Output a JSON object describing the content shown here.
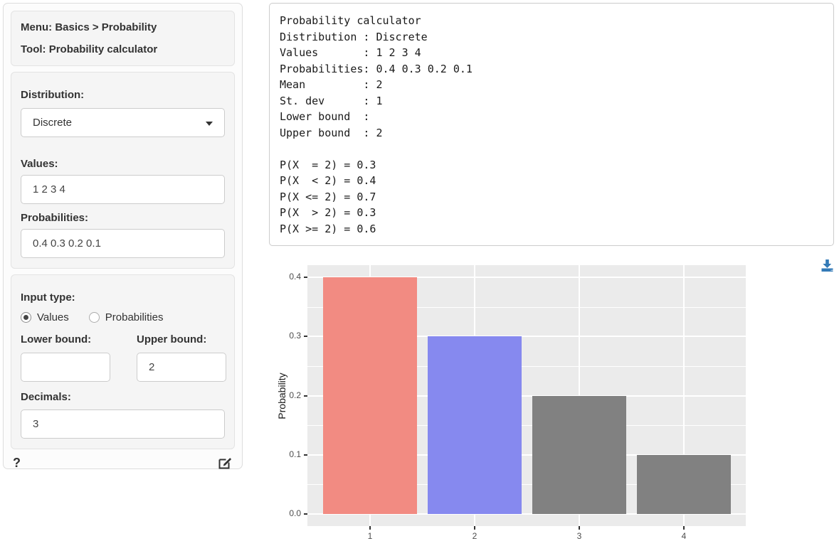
{
  "sidebar": {
    "menu_line": "Menu: Basics > Probability",
    "tool_line": "Tool: Probability calculator",
    "distribution": {
      "label": "Distribution:",
      "value": "Discrete"
    },
    "values": {
      "label": "Values:",
      "value": "1 2 3 4"
    },
    "probabilities": {
      "label": "Probabilities:",
      "value": "0.4 0.3 0.2 0.1"
    },
    "input_type": {
      "label": "Input type:",
      "options": [
        "Values",
        "Probabilities"
      ],
      "selected": "Values"
    },
    "lower_bound": {
      "label": "Lower bound:",
      "value": ""
    },
    "upper_bound": {
      "label": "Upper bound:",
      "value": "2"
    },
    "decimals": {
      "label": "Decimals:",
      "value": "3"
    },
    "help_label": "?"
  },
  "output": {
    "text": "Probability calculator\nDistribution : Discrete\nValues       : 1 2 3 4\nProbabilities: 0.4 0.3 0.2 0.1\nMean         : 2\nSt. dev      : 1\nLower bound  : \nUpper bound  : 2\n\nP(X  = 2) = 0.3\nP(X  < 2) = 0.4\nP(X <= 2) = 0.7\nP(X  > 2) = 0.3\nP(X >= 2) = 0.6"
  },
  "chart_data": {
    "type": "bar",
    "title": "",
    "xlabel": "",
    "ylabel": "Probability",
    "categories": [
      "1",
      "2",
      "3",
      "4"
    ],
    "values": [
      0.4,
      0.3,
      0.2,
      0.1
    ],
    "bar_colors": [
      "#f28b82",
      "#8689ef",
      "#818181",
      "#818181"
    ],
    "ylim": [
      0,
      0.4
    ],
    "yticks": [
      0,
      0.1,
      0.2,
      0.3,
      0.4
    ],
    "ytick_labels": [
      "0.0",
      "0.1",
      "0.2",
      "0.3",
      "0.4"
    ],
    "panel_bg": "#ebebeb",
    "grid_color": "#ffffff",
    "grid": "on",
    "legend": "none"
  },
  "colors": {
    "accent_blue": "#337ab7",
    "bar_red": "#f28b82",
    "bar_blue": "#8689ef",
    "bar_gray": "#818181",
    "panel_bg": "#ebebeb"
  }
}
